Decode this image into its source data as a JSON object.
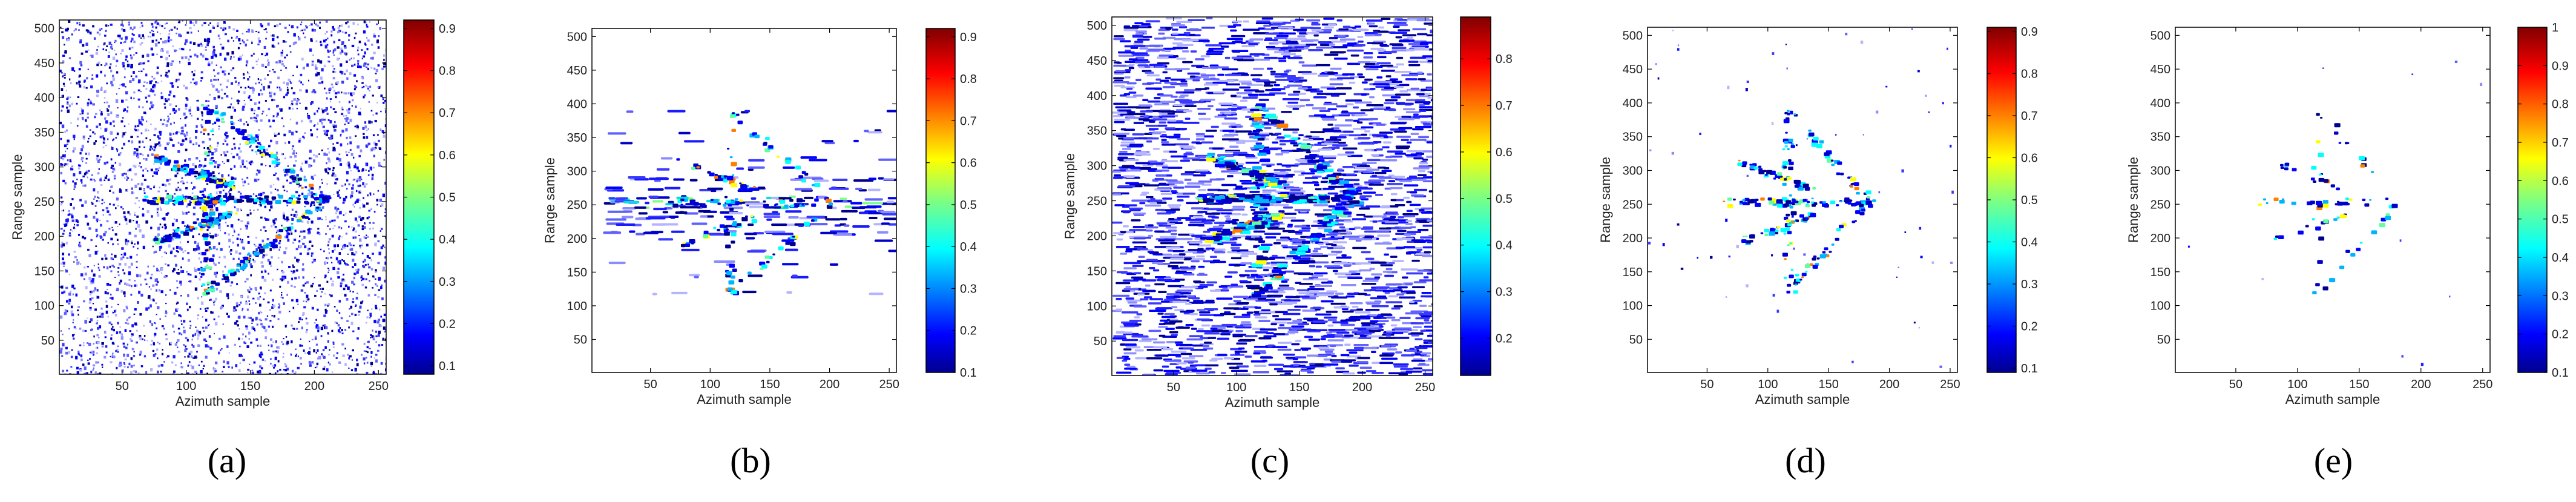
{
  "chart_data": [
    {
      "type": "heatmap",
      "panel_label": "(a)",
      "xlabel": "Azimuth sample",
      "ylabel": "Range sample",
      "xlim": [
        1,
        256
      ],
      "ylim": [
        1,
        512
      ],
      "x_ticks": [
        50,
        100,
        150,
        200,
        250
      ],
      "y_ticks": [
        50,
        100,
        150,
        200,
        250,
        300,
        350,
        400,
        450,
        500
      ],
      "colorbar": {
        "min": 0.08,
        "max": 0.92,
        "ticks": [
          0.1,
          0.2,
          0.3,
          0.4,
          0.5,
          0.6,
          0.7,
          0.8,
          0.9
        ]
      },
      "pattern": "dense-speckle",
      "target": {
        "tip": [
          205,
          255
        ],
        "center": [
          115,
          255
        ],
        "wing_top": [
          115,
          390
        ],
        "wing_bottom": [
          115,
          120
        ]
      }
    },
    {
      "type": "heatmap",
      "panel_label": "(b)",
      "xlabel": "Azimuth sample",
      "ylabel": "Range sample",
      "xlim": [
        1,
        256
      ],
      "ylim": [
        1,
        512
      ],
      "x_ticks": [
        50,
        100,
        150,
        200,
        250
      ],
      "y_ticks": [
        50,
        100,
        150,
        200,
        250,
        300,
        350,
        400,
        450,
        500
      ],
      "colorbar": {
        "min": 0.1,
        "max": 0.92,
        "ticks": [
          0.1,
          0.2,
          0.3,
          0.4,
          0.5,
          0.6,
          0.7,
          0.8,
          0.9
        ]
      },
      "pattern": "range-streaks",
      "target": {
        "tip": [
          200,
          255
        ],
        "center": [
          115,
          255
        ],
        "wing_top": [
          115,
          390
        ],
        "wing_bottom": [
          115,
          120
        ]
      }
    },
    {
      "type": "heatmap",
      "panel_label": "(c)",
      "xlabel": "Azimuth sample",
      "ylabel": "Range sample",
      "xlim": [
        1,
        256
      ],
      "ylim": [
        1,
        512
      ],
      "x_ticks": [
        50,
        100,
        150,
        200,
        250
      ],
      "y_ticks": [
        50,
        100,
        150,
        200,
        250,
        300,
        350,
        400,
        450,
        500
      ],
      "colorbar": {
        "min": 0.12,
        "max": 0.89,
        "ticks": [
          0.2,
          0.3,
          0.4,
          0.5,
          0.6,
          0.7,
          0.8
        ]
      },
      "pattern": "dense-streaks",
      "target": {
        "tip": [
          190,
          255
        ],
        "center": [
          115,
          255
        ],
        "wing_top": [
          115,
          390
        ],
        "wing_bottom": [
          115,
          120
        ]
      }
    },
    {
      "type": "heatmap",
      "panel_label": "(d)",
      "xlabel": "Azimuth sample",
      "ylabel": "Range sample",
      "xlim": [
        1,
        256
      ],
      "ylim": [
        1,
        512
      ],
      "x_ticks": [
        50,
        100,
        150,
        200,
        250
      ],
      "y_ticks": [
        50,
        100,
        150,
        200,
        250,
        300,
        350,
        400,
        450,
        500
      ],
      "colorbar": {
        "min": 0.09,
        "max": 0.91,
        "ticks": [
          0.1,
          0.2,
          0.3,
          0.4,
          0.5,
          0.6,
          0.7,
          0.8,
          0.9
        ]
      },
      "pattern": "sparse-target",
      "target": {
        "tip": [
          182,
          255
        ],
        "center": [
          115,
          255
        ],
        "wing_top": [
          115,
          395
        ],
        "wing_bottom": [
          115,
          120
        ]
      }
    },
    {
      "type": "heatmap",
      "panel_label": "(e)",
      "xlabel": "Azimuth sample",
      "ylabel": "Range sample",
      "xlim": [
        1,
        256
      ],
      "ylim": [
        1,
        512
      ],
      "x_ticks": [
        50,
        100,
        150,
        200,
        250
      ],
      "y_ticks": [
        50,
        100,
        150,
        200,
        250,
        300,
        350,
        400,
        450,
        500
      ],
      "colorbar": {
        "min": 0.1,
        "max": 1.0,
        "ticks": [
          0.1,
          0.2,
          0.3,
          0.4,
          0.5,
          0.6,
          0.7,
          0.8,
          0.9,
          1
        ]
      },
      "pattern": "very-sparse-target",
      "target": {
        "tip": [
          180,
          255
        ],
        "center": [
          115,
          255
        ],
        "wing_top": [
          115,
          390
        ],
        "wing_bottom": [
          115,
          120
        ]
      }
    }
  ]
}
